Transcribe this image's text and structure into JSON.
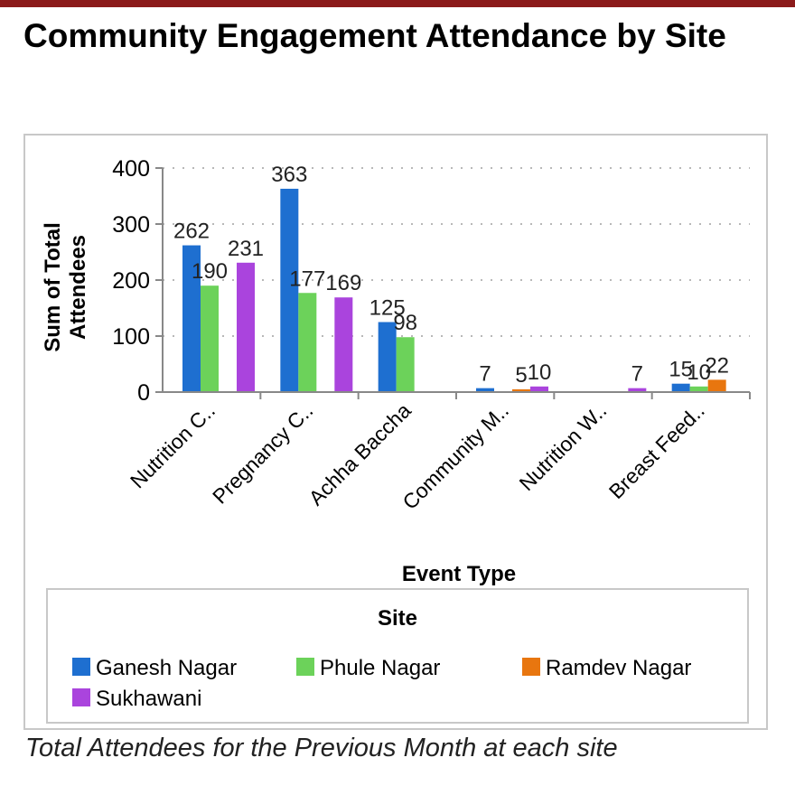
{
  "page": {
    "title": "Community Engagement Attendance by Site",
    "caption": "Total Attendees for the Previous Month at each site"
  },
  "colors": {
    "top_bar": "#8b1a1a",
    "panel_border": "#c8c8c8"
  },
  "chart_data": {
    "type": "bar",
    "title": "",
    "xlabel": "Event Type",
    "ylabel": "Sum of Total Attendees",
    "ylim": [
      0,
      400
    ],
    "yticks": [
      0,
      100,
      200,
      300,
      400
    ],
    "grid": "dotted horizontal",
    "categories": [
      "Nutrition C..",
      "Pregnancy C..",
      "Achha Baccha",
      "Community M..",
      "Nutrition W..",
      "Breast Feed.."
    ],
    "legend": {
      "title": "Site",
      "position": "bottom"
    },
    "series": [
      {
        "name": "Ganesh Nagar",
        "color": "#1e6fd0",
        "values": [
          262,
          363,
          125,
          7,
          null,
          15
        ]
      },
      {
        "name": "Phule Nagar",
        "color": "#6cd25a",
        "values": [
          190,
          177,
          98,
          null,
          null,
          10
        ]
      },
      {
        "name": "Ramdev Nagar",
        "color": "#e8760f",
        "values": [
          null,
          null,
          null,
          5,
          null,
          22
        ]
      },
      {
        "name": "Sukhawani",
        "color": "#aa44dd",
        "values": [
          231,
          169,
          null,
          10,
          7,
          null
        ]
      }
    ]
  }
}
